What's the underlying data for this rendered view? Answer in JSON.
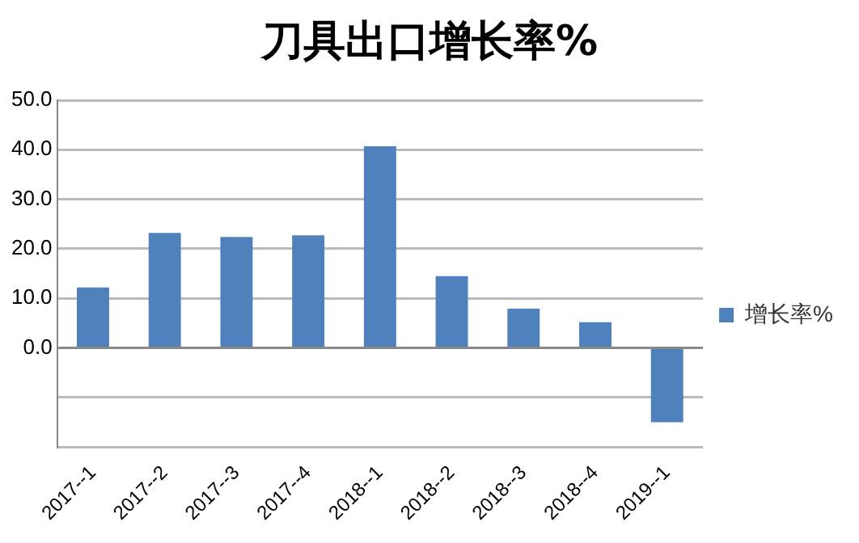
{
  "chart_data": {
    "type": "bar",
    "title": "刀具出口增长率%",
    "categories": [
      "2017--1",
      "2017--2",
      "2017--3",
      "2017--4",
      "2018--1",
      "2018--2",
      "2018--3",
      "2018--4",
      "2019--1"
    ],
    "series": [
      {
        "name": "增长率%",
        "color": "#4f81bd",
        "values": [
          12.2,
          23.2,
          22.4,
          22.7,
          40.7,
          14.5,
          7.9,
          5.2,
          -15.0
        ]
      }
    ],
    "ylim": [
      -20,
      50
    ],
    "yticks": [
      {
        "value": -20,
        "label": null
      },
      {
        "value": -10,
        "label": null
      },
      {
        "value": 0,
        "label": "0.0"
      },
      {
        "value": 10,
        "label": "10.0"
      },
      {
        "value": 20,
        "label": "20.0"
      },
      {
        "value": 30,
        "label": "30.0"
      },
      {
        "value": 40,
        "label": "40.0"
      },
      {
        "value": 50,
        "label": "50.0"
      }
    ],
    "grid": "y",
    "legend": "right"
  }
}
